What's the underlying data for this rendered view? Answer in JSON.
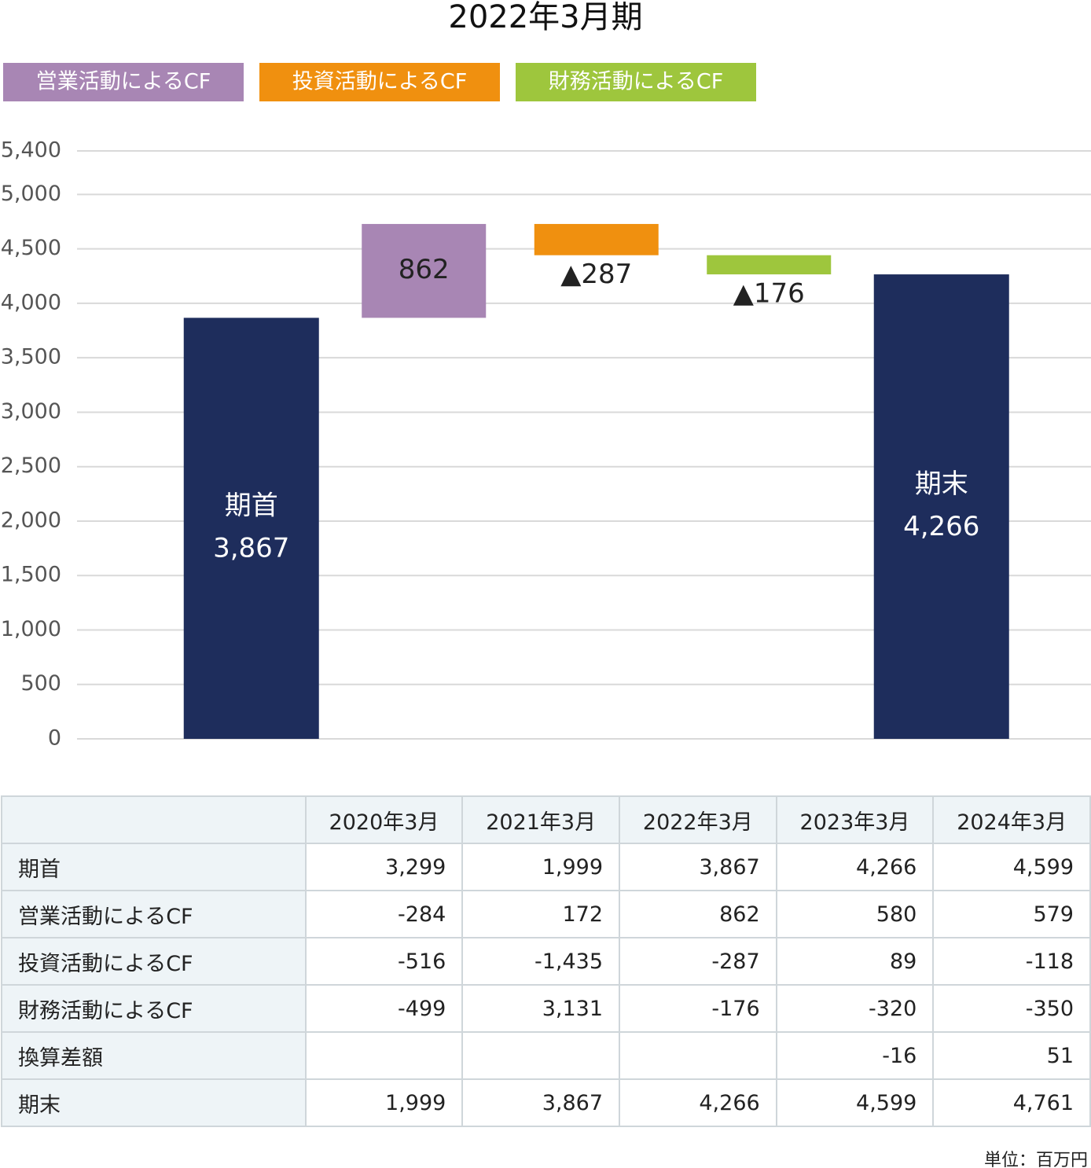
{
  "chart_data": {
    "type": "waterfall",
    "title": "2022年3月期",
    "legend": [
      {
        "name": "営業活動によるCF",
        "color": "#a886b4"
      },
      {
        "name": "投資活動によるCF",
        "color": "#f0900f"
      },
      {
        "name": "財務活動によるCF",
        "color": "#9ec63d"
      }
    ],
    "categories": [
      "期首",
      null,
      null,
      null,
      "期末"
    ],
    "values": [
      3867,
      862,
      -287,
      -176,
      4266
    ],
    "value_labels": [
      "3,867",
      "862",
      "▲287",
      "▲176",
      "4,266"
    ],
    "totals": [
      true,
      false,
      false,
      false,
      true
    ],
    "colors": [
      "#1e2d5c",
      "#a886b4",
      "#f0900f",
      "#9ec63d",
      "#1e2d5c"
    ],
    "ylim": [
      0,
      5400
    ],
    "yticks": [
      0,
      500,
      {
        "value": 1000,
        "label": "1,000"
      },
      {
        "value": 1500,
        "label": "1,500"
      },
      {
        "value": 2000,
        "label": "2,000"
      },
      {
        "value": 2500,
        "label": "2,500"
      },
      {
        "value": 3000,
        "label": "3,000"
      },
      {
        "value": 3500,
        "label": "3,500"
      },
      {
        "value": 4000,
        "label": "4,000"
      },
      {
        "value": 4500,
        "label": "4,500"
      },
      {
        "value": 5000,
        "label": "5,000"
      },
      {
        "value": 5400,
        "label": "5,400"
      }
    ],
    "grid": true
  },
  "table": {
    "header": [
      "2020年3月",
      "2021年3月",
      "2022年3月",
      "2023年3月",
      "2024年3月"
    ],
    "rows": [
      [
        "期首",
        "3,299",
        "1,999",
        "3,867",
        "4,266",
        "4,599"
      ],
      [
        "営業活動によるCF",
        "-284",
        "172",
        "862",
        "580",
        "579"
      ],
      [
        "投資活動によるCF",
        "-516",
        "-1,435",
        "-287",
        "89",
        "-118"
      ],
      [
        "財務活動によるCF",
        "-499",
        "3,131",
        "-176",
        "-320",
        "-350"
      ],
      [
        "換算差額",
        null,
        null,
        null,
        "-16",
        "51"
      ],
      [
        "期末",
        "1,999",
        "3,867",
        "4,266",
        "4,599",
        "4,761"
      ]
    ],
    "unit": "単位：百万円"
  }
}
